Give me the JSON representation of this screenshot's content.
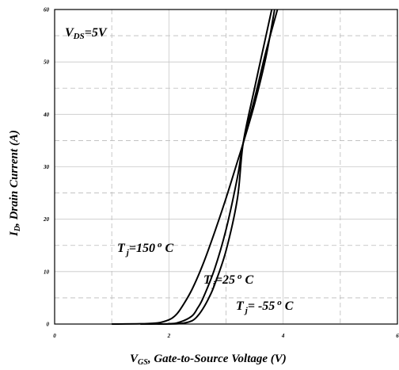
{
  "chart_data": {
    "type": "line",
    "x_range": [
      0,
      6
    ],
    "y_range": [
      0,
      60
    ],
    "x_ticks": [
      "0",
      "2",
      "4",
      "6"
    ],
    "y_ticks": [
      "0",
      "10",
      "20",
      "30",
      "40",
      "50",
      "60"
    ],
    "grid": "on",
    "xlabel": {
      "sym": "V",
      "sub": "GS",
      "rest": ", Gate-to-Source Voltage (V)"
    },
    "ylabel": {
      "sym": "I",
      "sub": "D",
      "rest": ", Drain Current (A)"
    },
    "annotation_top": {
      "sym": "V",
      "sub": "DS",
      "rest": "=5V"
    },
    "series": [
      {
        "name": "Tj=150°C",
        "label": {
          "sym": "T",
          "sub": "j",
          "val": "=150",
          "sup": "o",
          "unit": " C"
        },
        "x": [
          1.0,
          1.5,
          1.8,
          2.0,
          2.1,
          2.2,
          2.4,
          2.6,
          2.8,
          3.0,
          3.2,
          3.3,
          3.5,
          3.7,
          3.85
        ],
        "y": [
          0,
          0.05,
          0.2,
          0.8,
          1.5,
          2.8,
          6.5,
          11.5,
          17.5,
          24,
          31,
          34.5,
          42,
          51,
          60
        ]
      },
      {
        "name": "Tj=25°C",
        "label": {
          "sym": "T",
          "sub": "j",
          "val": "=25",
          "sup": "o",
          "unit": " C"
        },
        "x": [
          1.5,
          2.0,
          2.2,
          2.4,
          2.5,
          2.6,
          2.8,
          3.0,
          3.2,
          3.3,
          3.5,
          3.7,
          3.9
        ],
        "y": [
          0,
          0.05,
          0.4,
          1.5,
          3.0,
          5.0,
          10.5,
          18,
          28,
          34.5,
          43,
          52,
          60
        ]
      },
      {
        "name": "Tj=-55°C",
        "label": {
          "sym": "T",
          "sub": "j",
          "val": "= -55",
          "sup": "o",
          "unit": " C"
        },
        "x": [
          1.8,
          2.2,
          2.4,
          2.5,
          2.6,
          2.7,
          2.8,
          3.0,
          3.2,
          3.3,
          3.5,
          3.7,
          3.8
        ],
        "y": [
          0,
          0.1,
          0.6,
          1.5,
          3.0,
          5.0,
          7.5,
          14,
          24,
          34.5,
          45,
          55,
          60
        ]
      }
    ]
  }
}
